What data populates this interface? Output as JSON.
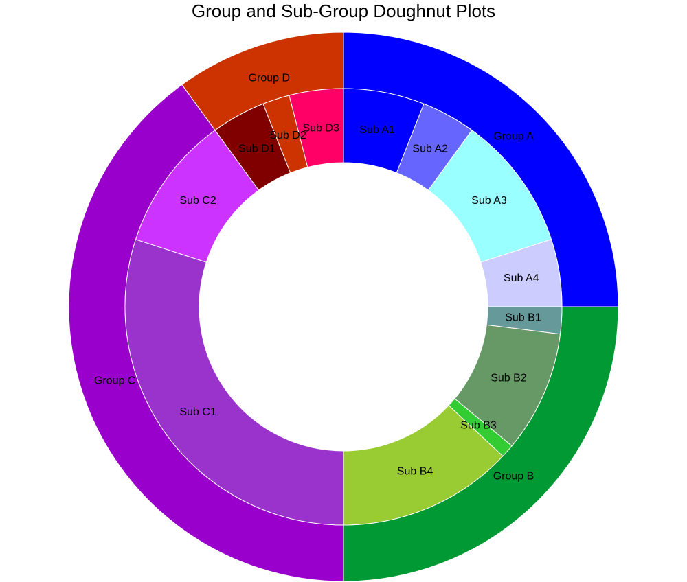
{
  "chart_data": {
    "type": "doughnut",
    "title": "Group and Sub-Group Doughnut Plots",
    "outer": {
      "labels": [
        "Group A",
        "Group B",
        "Group C",
        "Group D"
      ],
      "values": [
        25,
        25,
        40,
        10
      ],
      "colors": [
        "#0000ff",
        "#009933",
        "#9900cc",
        "#cc3300"
      ]
    },
    "inner": {
      "labels": [
        "Sub A1",
        "Sub A2",
        "Sub A3",
        "Sub A4",
        "Sub B1",
        "Sub B2",
        "Sub B3",
        "Sub B4",
        "Sub C1",
        "Sub C2",
        "Sub D1",
        "Sub D2",
        "Sub D3"
      ],
      "values": [
        6,
        4,
        10,
        5,
        2,
        9,
        1,
        13,
        30,
        10,
        4,
        2,
        4
      ],
      "colors": [
        "#0000ff",
        "#6666ff",
        "#99ffff",
        "#ccccff",
        "#669999",
        "#669966",
        "#33cc33",
        "#99cc33",
        "#9933cc",
        "#cc33ff",
        "#800000",
        "#cc3300",
        "#ff0066"
      ]
    }
  }
}
